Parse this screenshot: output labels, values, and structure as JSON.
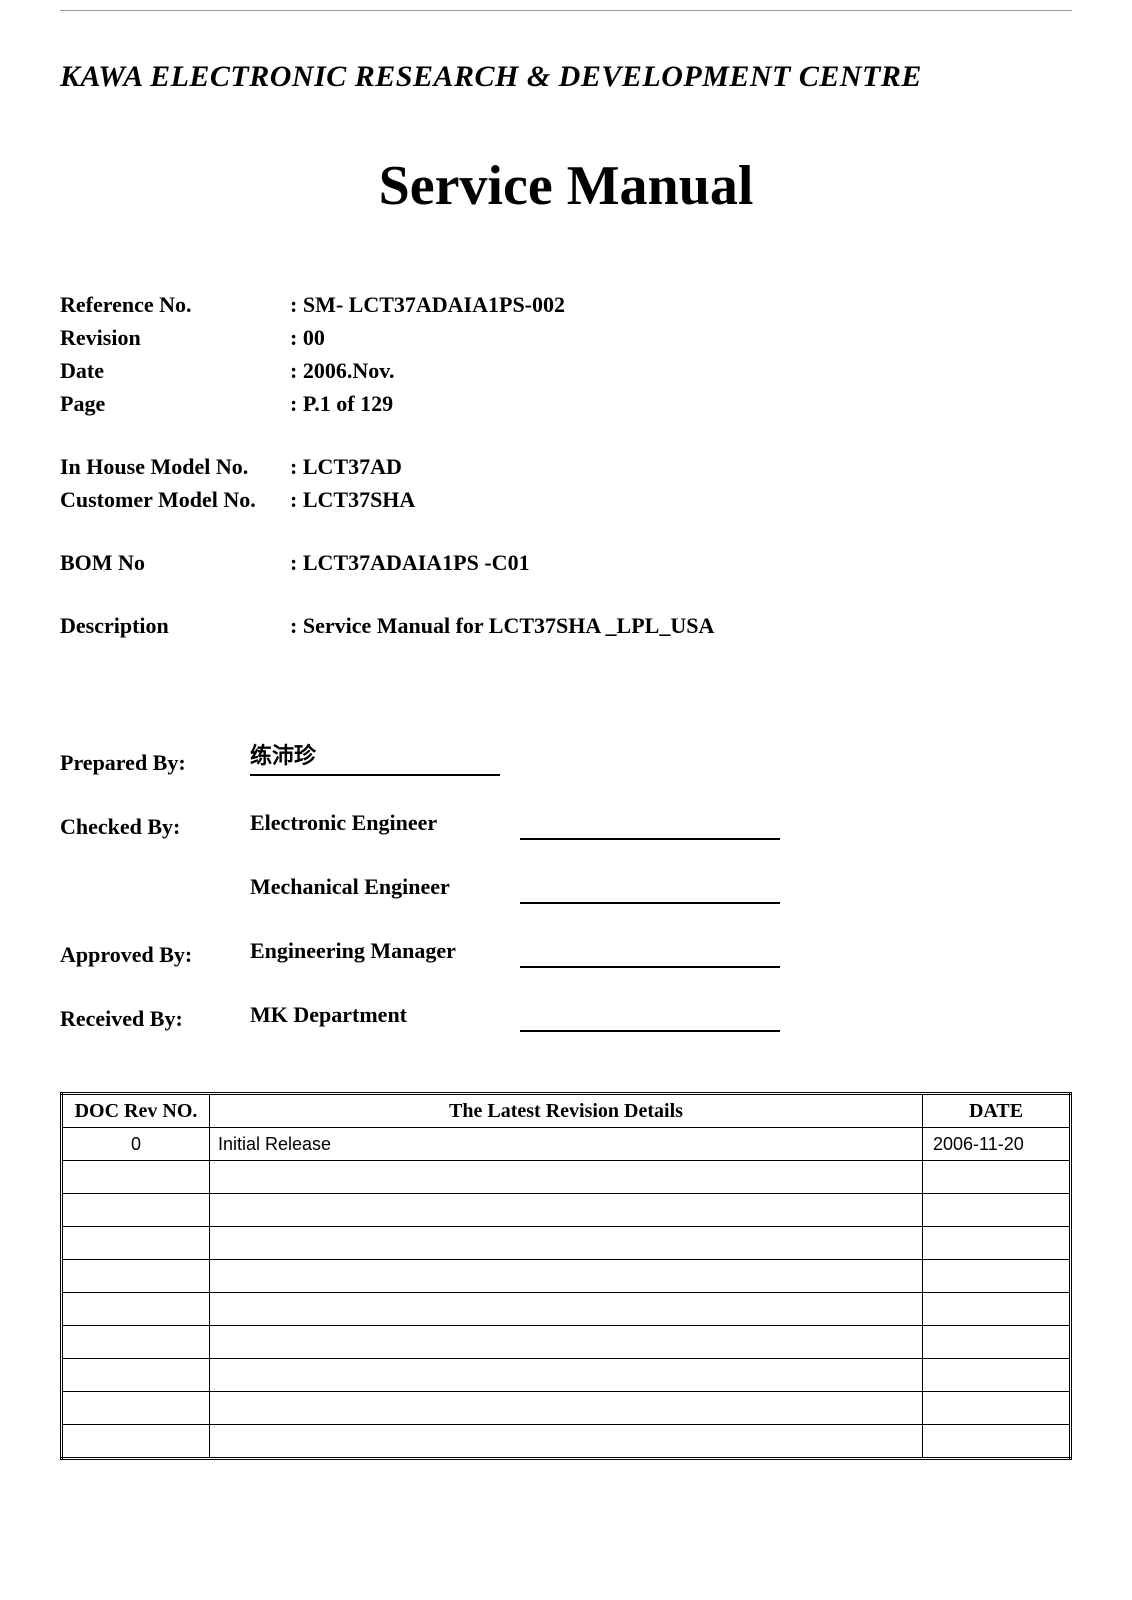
{
  "header": {
    "org": "KAWA ELECTRONIC RESEARCH & DEVELOPMENT CENTRE",
    "title": "Service Manual"
  },
  "meta": {
    "group1": [
      {
        "label": "Reference No.",
        "value": "SM- LCT37ADAIA1PS-002"
      },
      {
        "label": "Revision",
        "value": "00"
      },
      {
        "label": "Date",
        "value": "2006.Nov."
      },
      {
        "label": "Page",
        "value": "P.1 of 129"
      }
    ],
    "group2": [
      {
        "label": "In House Model No.",
        "value": "LCT37AD"
      },
      {
        "label": "Customer Model No.",
        "value": "LCT37SHA"
      }
    ],
    "group3": [
      {
        "label": "BOM No",
        "value": "LCT37ADAIA1PS -C01"
      }
    ],
    "group4": [
      {
        "label": "Description",
        "value": "Service Manual for LCT37SHA _LPL_USA"
      }
    ]
  },
  "signoff": {
    "rows": [
      {
        "label": "Prepared By:",
        "role": "练沛珍",
        "roleline": true,
        "sigline": false
      },
      {
        "label": "Checked By:",
        "role": "Electronic Engineer",
        "roleline": false,
        "sigline": true
      },
      {
        "label": "",
        "role": "Mechanical Engineer",
        "roleline": false,
        "sigline": true
      },
      {
        "label": "Approved By:",
        "role": "Engineering Manager",
        "roleline": false,
        "sigline": true
      },
      {
        "label": "Received By:",
        "role": "MK Department",
        "roleline": false,
        "sigline": true
      }
    ]
  },
  "revision_table": {
    "columns": [
      "DOC Rev NO.",
      "The Latest Revision Details",
      "DATE"
    ],
    "rows": [
      {
        "rev": "0",
        "details": "Initial Release",
        "date": "2006-11-20"
      },
      {
        "rev": "",
        "details": "",
        "date": ""
      },
      {
        "rev": "",
        "details": "",
        "date": ""
      },
      {
        "rev": "",
        "details": "",
        "date": ""
      },
      {
        "rev": "",
        "details": "",
        "date": ""
      },
      {
        "rev": "",
        "details": "",
        "date": ""
      },
      {
        "rev": "",
        "details": "",
        "date": ""
      },
      {
        "rev": "",
        "details": "",
        "date": ""
      },
      {
        "rev": "",
        "details": "",
        "date": ""
      },
      {
        "rev": "",
        "details": "",
        "date": ""
      }
    ]
  },
  "style": {
    "background_color": "#ffffff",
    "text_color": "#000000",
    "font_family_serif": "Times New Roman",
    "font_family_sans": "Arial",
    "org_fontsize": 30,
    "title_fontsize": 56,
    "meta_fontsize": 22,
    "table_fontsize": 18,
    "table_border_color": "#000000"
  }
}
